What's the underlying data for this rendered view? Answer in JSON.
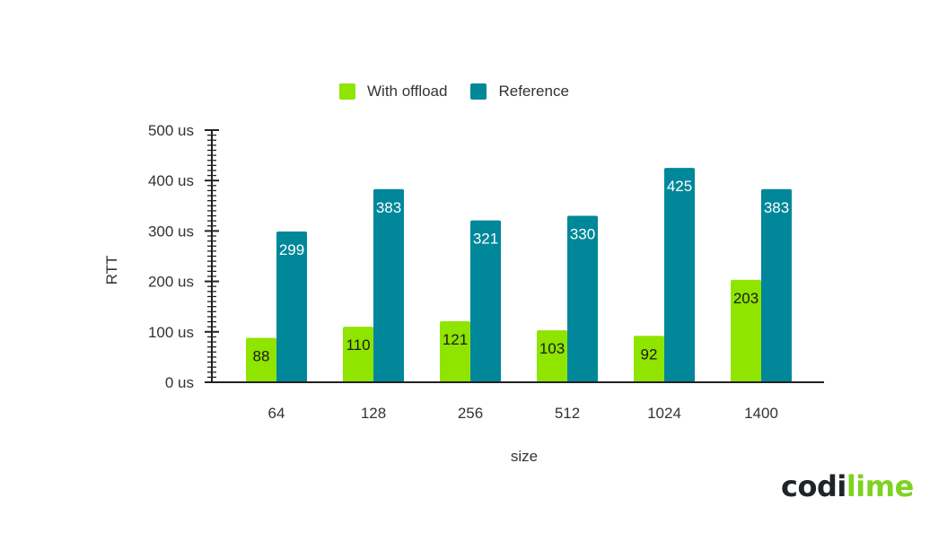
{
  "chart_data": {
    "type": "bar",
    "categories": [
      "64",
      "128",
      "256",
      "512",
      "1024",
      "1400"
    ],
    "series": [
      {
        "name": "With offload",
        "values": [
          88,
          110,
          121,
          103,
          92,
          203
        ],
        "color": "#8fe400"
      },
      {
        "name": "Reference",
        "values": [
          299,
          383,
          321,
          330,
          425,
          383
        ],
        "color": "#00879a"
      }
    ],
    "xlabel": "size",
    "ylabel": "RTT",
    "ylim": [
      0,
      500
    ],
    "yticks": [
      0,
      100,
      200,
      300,
      400,
      500
    ],
    "ytick_labels": [
      "0 us",
      "100 us",
      "200 us",
      "300 us",
      "400 us",
      "500 us"
    ],
    "legend_position": "top-center",
    "grid": false
  },
  "brand": {
    "logo_part1": "codi",
    "logo_part2": "lime",
    "logo_color_dark": "#1f2428",
    "logo_color_accent": "#7ed321"
  }
}
